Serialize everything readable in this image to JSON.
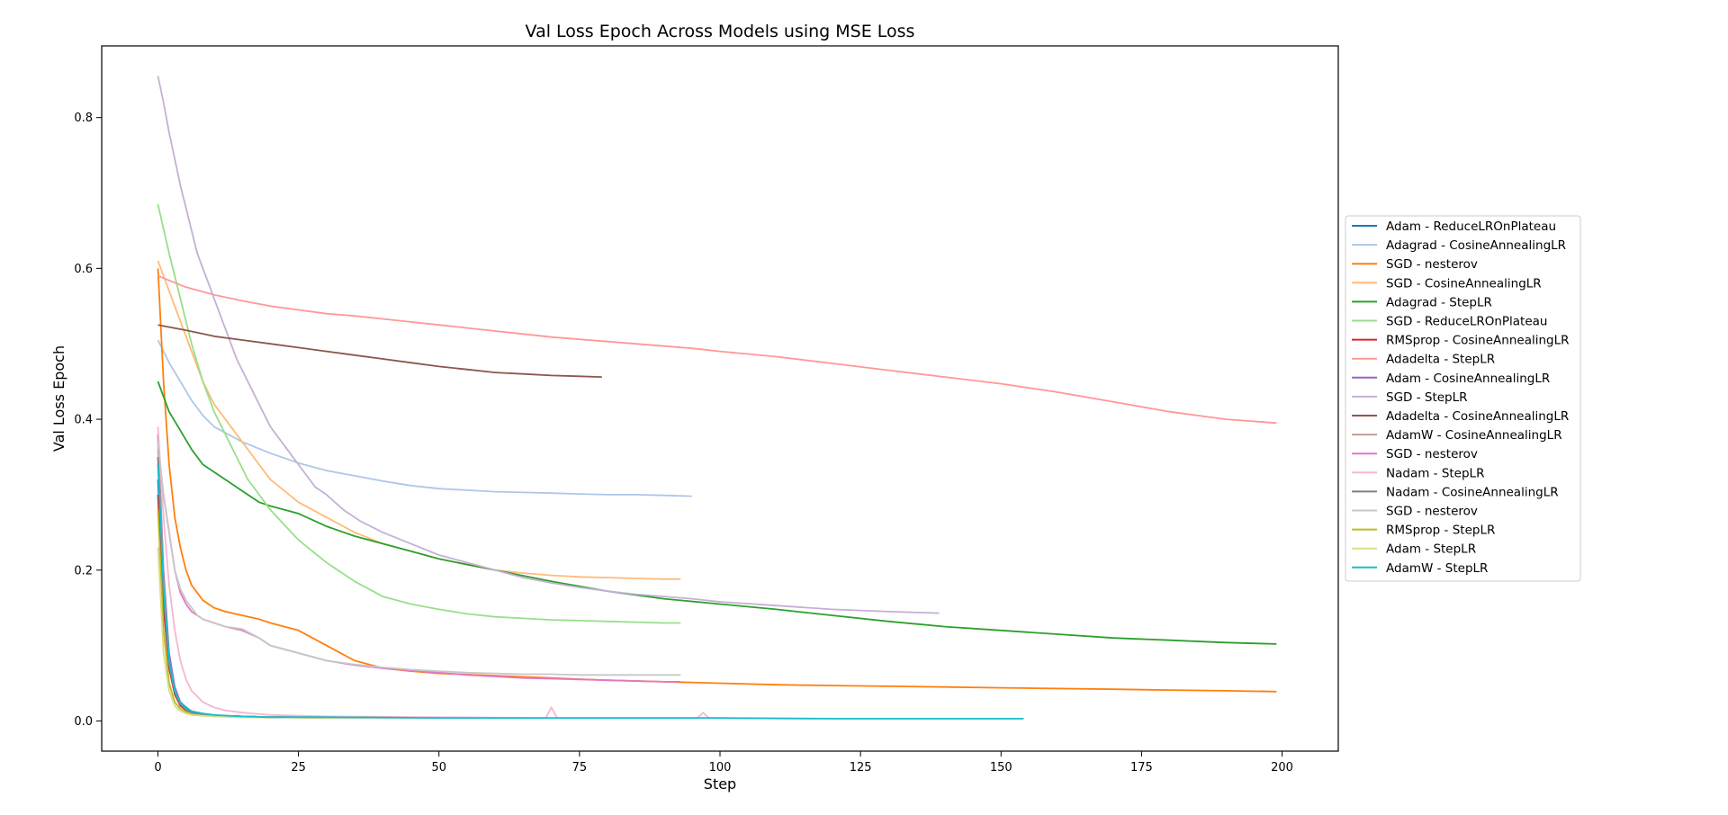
{
  "chart_data": {
    "type": "line",
    "title": "Val Loss Epoch Across Models using MSE Loss",
    "xlabel": "Step",
    "ylabel": "Val Loss Epoch",
    "xlim": [
      -10,
      210
    ],
    "ylim": [
      -0.04,
      0.895
    ],
    "xticks": [
      0,
      25,
      50,
      75,
      100,
      125,
      150,
      175,
      200
    ],
    "yticks": [
      0.0,
      0.2,
      0.4,
      0.6,
      0.8
    ],
    "xtick_labels": [
      "0",
      "25",
      "50",
      "75",
      "100",
      "125",
      "150",
      "175",
      "200"
    ],
    "ytick_labels": [
      "0.0",
      "0.2",
      "0.4",
      "0.6",
      "0.8"
    ],
    "grid": false,
    "legend_position": "outside-right",
    "series": [
      {
        "name": "Adam - ReduceLROnPlateau",
        "color": "#1f77b4",
        "x": [
          0,
          1,
          2,
          3,
          4,
          5,
          6,
          8,
          10,
          15,
          20,
          30,
          50
        ],
        "y": [
          0.32,
          0.16,
          0.07,
          0.04,
          0.025,
          0.018,
          0.013,
          0.009,
          0.007,
          0.006,
          0.005,
          0.005,
          0.004
        ]
      },
      {
        "name": "Adagrad - CosineAnnealingLR",
        "color": "#aec7e8",
        "x": [
          0,
          2,
          4,
          6,
          8,
          10,
          12,
          15,
          20,
          25,
          30,
          35,
          40,
          45,
          50,
          55,
          60,
          65,
          70,
          75,
          80,
          85,
          90,
          95
        ],
        "y": [
          0.505,
          0.475,
          0.45,
          0.425,
          0.405,
          0.39,
          0.382,
          0.37,
          0.355,
          0.342,
          0.332,
          0.325,
          0.318,
          0.312,
          0.308,
          0.306,
          0.304,
          0.303,
          0.302,
          0.301,
          0.3,
          0.3,
          0.299,
          0.298
        ]
      },
      {
        "name": "SGD - nesterov",
        "color": "#ff7f0e",
        "x": [
          0,
          1,
          2,
          3,
          4,
          5,
          6,
          8,
          10,
          12,
          15,
          18,
          20,
          25,
          30,
          35,
          40,
          45,
          50,
          60,
          70,
          80,
          90,
          100,
          110,
          120,
          130,
          140,
          150,
          160,
          170,
          180,
          190,
          199
        ],
        "y": [
          0.6,
          0.45,
          0.34,
          0.27,
          0.23,
          0.2,
          0.18,
          0.16,
          0.15,
          0.145,
          0.14,
          0.135,
          0.13,
          0.12,
          0.1,
          0.08,
          0.07,
          0.066,
          0.063,
          0.06,
          0.057,
          0.054,
          0.052,
          0.05,
          0.048,
          0.047,
          0.046,
          0.045,
          0.044,
          0.043,
          0.042,
          0.041,
          0.04,
          0.039
        ]
      },
      {
        "name": "SGD - CosineAnnealingLR",
        "color": "#ffbb78",
        "x": [
          0,
          2,
          4,
          6,
          8,
          10,
          12,
          15,
          18,
          20,
          25,
          30,
          35,
          40,
          45,
          50,
          55,
          60,
          65,
          70,
          75,
          80,
          85,
          90,
          93
        ],
        "y": [
          0.61,
          0.57,
          0.53,
          0.49,
          0.45,
          0.42,
          0.4,
          0.37,
          0.34,
          0.32,
          0.29,
          0.27,
          0.25,
          0.235,
          0.225,
          0.215,
          0.207,
          0.2,
          0.196,
          0.193,
          0.191,
          0.19,
          0.189,
          0.188,
          0.188
        ]
      },
      {
        "name": "Adagrad - StepLR",
        "color": "#2ca02c",
        "x": [
          0,
          2,
          4,
          6,
          8,
          10,
          12,
          15,
          18,
          20,
          25,
          30,
          35,
          40,
          45,
          50,
          60,
          70,
          80,
          90,
          100,
          110,
          120,
          130,
          140,
          150,
          160,
          170,
          180,
          190,
          199
        ],
        "y": [
          0.45,
          0.41,
          0.385,
          0.36,
          0.34,
          0.33,
          0.32,
          0.305,
          0.29,
          0.285,
          0.275,
          0.258,
          0.245,
          0.235,
          0.225,
          0.215,
          0.2,
          0.185,
          0.172,
          0.162,
          0.155,
          0.148,
          0.14,
          0.132,
          0.125,
          0.12,
          0.115,
          0.11,
          0.107,
          0.104,
          0.102
        ]
      },
      {
        "name": "SGD - ReduceLROnPlateau",
        "color": "#98df8a",
        "x": [
          0,
          2,
          4,
          6,
          8,
          10,
          12,
          14,
          16,
          18,
          20,
          25,
          30,
          35,
          40,
          45,
          50,
          55,
          60,
          65,
          70,
          75,
          80,
          85,
          90,
          93
        ],
        "y": [
          0.685,
          0.62,
          0.56,
          0.5,
          0.45,
          0.41,
          0.38,
          0.35,
          0.32,
          0.3,
          0.28,
          0.24,
          0.21,
          0.185,
          0.165,
          0.155,
          0.148,
          0.142,
          0.138,
          0.136,
          0.134,
          0.133,
          0.132,
          0.131,
          0.13,
          0.13
        ]
      },
      {
        "name": "RMSprop - CosineAnnealingLR",
        "color": "#d62728",
        "x": [
          0,
          1,
          2,
          3,
          4,
          5,
          6,
          8,
          10,
          15,
          20,
          30,
          40,
          50
        ],
        "y": [
          0.3,
          0.15,
          0.07,
          0.035,
          0.02,
          0.014,
          0.011,
          0.008,
          0.007,
          0.006,
          0.005,
          0.005,
          0.004,
          0.004
        ]
      },
      {
        "name": "Adadelta - StepLR",
        "color": "#ff9896",
        "x": [
          0,
          5,
          10,
          15,
          20,
          25,
          30,
          35,
          40,
          45,
          50,
          55,
          60,
          65,
          70,
          75,
          80,
          85,
          90,
          95,
          100,
          110,
          120,
          130,
          140,
          150,
          160,
          170,
          180,
          190,
          199
        ],
        "y": [
          0.59,
          0.575,
          0.565,
          0.557,
          0.55,
          0.545,
          0.54,
          0.537,
          0.533,
          0.529,
          0.525,
          0.521,
          0.517,
          0.513,
          0.509,
          0.506,
          0.503,
          0.5,
          0.497,
          0.494,
          0.49,
          0.483,
          0.474,
          0.465,
          0.456,
          0.447,
          0.436,
          0.423,
          0.41,
          0.4,
          0.395
        ]
      },
      {
        "name": "Adam - CosineAnnealingLR",
        "color": "#9467bd",
        "x": [
          0,
          1,
          2,
          3,
          4,
          5,
          6,
          8,
          10,
          15,
          20,
          30,
          50
        ],
        "y": [
          0.38,
          0.2,
          0.09,
          0.045,
          0.025,
          0.016,
          0.012,
          0.009,
          0.007,
          0.006,
          0.005,
          0.005,
          0.004
        ]
      },
      {
        "name": "SGD - StepLR",
        "color": "#c5b0d5",
        "x": [
          0,
          1,
          2,
          3,
          4,
          5,
          6,
          7,
          8,
          9,
          10,
          12,
          14,
          16,
          18,
          20,
          22,
          25,
          28,
          30,
          33,
          36,
          40,
          45,
          50,
          55,
          60,
          65,
          70,
          75,
          80,
          85,
          90,
          95,
          100,
          110,
          120,
          130,
          139
        ],
        "y": [
          0.855,
          0.82,
          0.78,
          0.745,
          0.71,
          0.68,
          0.65,
          0.62,
          0.6,
          0.58,
          0.56,
          0.52,
          0.48,
          0.45,
          0.42,
          0.39,
          0.37,
          0.34,
          0.31,
          0.3,
          0.28,
          0.265,
          0.25,
          0.235,
          0.22,
          0.21,
          0.2,
          0.19,
          0.183,
          0.177,
          0.172,
          0.168,
          0.165,
          0.162,
          0.158,
          0.153,
          0.148,
          0.145,
          0.143
        ]
      },
      {
        "name": "Adadelta - CosineAnnealingLR",
        "color": "#8c564b",
        "x": [
          0,
          5,
          10,
          15,
          20,
          25,
          30,
          35,
          40,
          45,
          50,
          55,
          60,
          65,
          70,
          75,
          79
        ],
        "y": [
          0.525,
          0.518,
          0.51,
          0.505,
          0.5,
          0.495,
          0.49,
          0.485,
          0.48,
          0.475,
          0.47,
          0.466,
          0.462,
          0.46,
          0.458,
          0.457,
          0.456
        ]
      },
      {
        "name": "AdamW - CosineAnnealingLR",
        "color": "#c49c94",
        "x": [
          0,
          1,
          2,
          3,
          4,
          5,
          6,
          8,
          10,
          15,
          20,
          30,
          50
        ],
        "y": [
          0.37,
          0.19,
          0.08,
          0.04,
          0.022,
          0.015,
          0.011,
          0.008,
          0.007,
          0.006,
          0.005,
          0.005,
          0.004
        ]
      },
      {
        "name": "SGD - nesterov",
        "color": "#e377c2",
        "x": [
          0,
          1,
          2,
          3,
          4,
          5,
          6,
          7,
          8,
          10,
          12,
          15,
          18,
          20,
          25,
          30,
          35,
          40,
          45,
          50,
          55,
          60,
          65,
          70,
          75,
          80,
          85,
          90,
          93
        ],
        "y": [
          0.36,
          0.3,
          0.25,
          0.2,
          0.17,
          0.155,
          0.145,
          0.14,
          0.135,
          0.13,
          0.125,
          0.12,
          0.11,
          0.1,
          0.09,
          0.08,
          0.074,
          0.07,
          0.067,
          0.064,
          0.061,
          0.059,
          0.057,
          0.056,
          0.055,
          0.054,
          0.053,
          0.052,
          0.052
        ]
      },
      {
        "name": "Nadam - StepLR",
        "color": "#f7b6d2",
        "x": [
          0,
          1,
          2,
          3,
          4,
          5,
          6,
          8,
          10,
          12,
          15,
          20,
          30,
          50,
          69,
          70,
          71,
          80,
          96,
          97,
          98,
          110,
          130,
          150,
          154
        ],
        "y": [
          0.39,
          0.27,
          0.18,
          0.12,
          0.08,
          0.055,
          0.04,
          0.025,
          0.018,
          0.014,
          0.011,
          0.008,
          0.006,
          0.005,
          0.004,
          0.018,
          0.004,
          0.004,
          0.004,
          0.011,
          0.004,
          0.003,
          0.003,
          0.003,
          0.003
        ]
      },
      {
        "name": "Nadam - CosineAnnealingLR",
        "color": "#7f7f7f",
        "x": [
          0,
          1,
          2,
          3,
          4,
          5,
          6,
          8,
          10,
          15,
          20,
          30,
          50
        ],
        "y": [
          0.35,
          0.17,
          0.075,
          0.038,
          0.022,
          0.015,
          0.011,
          0.008,
          0.007,
          0.006,
          0.005,
          0.005,
          0.004
        ]
      },
      {
        "name": "SGD - nesterov",
        "color": "#c7c7c7",
        "x": [
          0,
          1,
          2,
          3,
          4,
          5,
          6,
          7,
          8,
          10,
          12,
          15,
          18,
          20,
          25,
          30,
          35,
          40,
          45,
          50,
          55,
          60,
          65,
          70,
          75,
          80,
          85,
          90,
          93
        ],
        "y": [
          0.37,
          0.3,
          0.25,
          0.2,
          0.175,
          0.16,
          0.15,
          0.14,
          0.135,
          0.13,
          0.125,
          0.122,
          0.11,
          0.1,
          0.09,
          0.08,
          0.075,
          0.071,
          0.068,
          0.066,
          0.064,
          0.063,
          0.062,
          0.062,
          0.061,
          0.061,
          0.061,
          0.061,
          0.061
        ]
      },
      {
        "name": "RMSprop - StepLR",
        "color": "#bcbd22",
        "x": [
          0,
          1,
          2,
          3,
          4,
          5,
          6,
          8,
          10,
          15,
          20,
          30,
          50
        ],
        "y": [
          0.28,
          0.12,
          0.05,
          0.025,
          0.016,
          0.012,
          0.009,
          0.007,
          0.006,
          0.005,
          0.005,
          0.004,
          0.004
        ]
      },
      {
        "name": "Adam - StepLR",
        "color": "#dbdb8d",
        "x": [
          0,
          1,
          2,
          3,
          4,
          5,
          6,
          8,
          10,
          15,
          20,
          30,
          50
        ],
        "y": [
          0.23,
          0.09,
          0.04,
          0.02,
          0.013,
          0.01,
          0.008,
          0.007,
          0.006,
          0.005,
          0.005,
          0.004,
          0.004
        ]
      },
      {
        "name": "AdamW - StepLR",
        "color": "#17becf",
        "x": [
          0,
          1,
          2,
          3,
          4,
          5,
          6,
          8,
          10,
          15,
          20,
          30,
          50,
          80,
          100,
          120,
          140,
          154
        ],
        "y": [
          0.34,
          0.18,
          0.08,
          0.04,
          0.024,
          0.017,
          0.013,
          0.01,
          0.008,
          0.006,
          0.005,
          0.005,
          0.004,
          0.004,
          0.004,
          0.003,
          0.003,
          0.003
        ]
      }
    ]
  }
}
